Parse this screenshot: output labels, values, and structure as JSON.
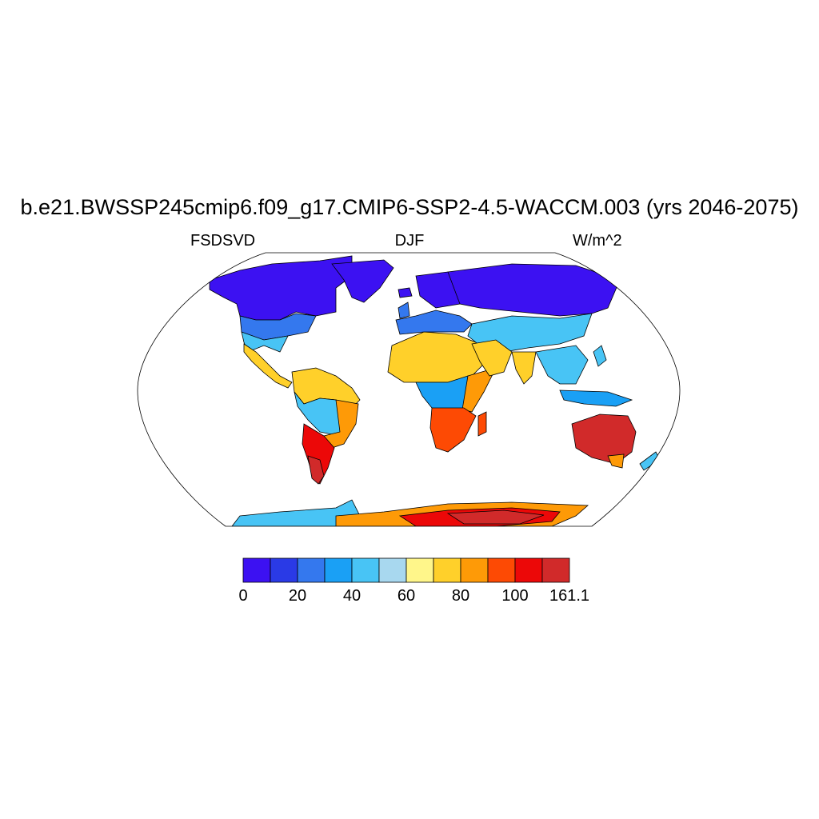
{
  "title": "b.e21.BWSSP245cmip6.f09_g17.CMIP6-SSP2-4.5-WACCM.003 (yrs 2046-2075)",
  "subtitle_left": "FSDSVD",
  "subtitle_center": "DJF",
  "subtitle_right": "W/m^2",
  "colorbar": {
    "colors": [
      "#3c11f2",
      "#2a3ae6",
      "#3478ee",
      "#1aa0f5",
      "#48c4f5",
      "#a8d8ef",
      "#fff68a",
      "#ffd02a",
      "#fe9a07",
      "#fd4a04",
      "#ec0808",
      "#d12a2a"
    ],
    "labels": [
      "0",
      "20",
      "40",
      "60",
      "80",
      "100",
      "161.1"
    ]
  }
}
